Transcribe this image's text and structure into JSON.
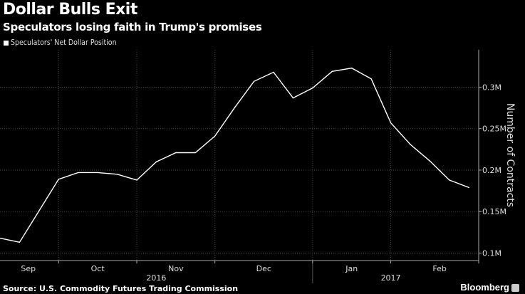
{
  "title": "Dollar Bulls Exit",
  "subtitle": "Speculators losing faith in Trump's promises",
  "source": "Source: U.S. Commodity Futures Trading Commission",
  "brand": "Bloomberg",
  "chart_data": {
    "type": "line",
    "title": "Dollar Bulls Exit",
    "ylabel": "Number of Contracts",
    "xlabel": "",
    "legend": "top-left",
    "grid": true,
    "series": [
      {
        "name": "Speculators' Net Dollar Position",
        "color": "#ffffff",
        "x": [
          0,
          1,
          2,
          3,
          4,
          5,
          6,
          7,
          8,
          9,
          10,
          11,
          12,
          13,
          14,
          15,
          16,
          17,
          18,
          19,
          20,
          21,
          22,
          23,
          24
        ],
        "values": [
          0.118,
          0.113,
          0.151,
          0.189,
          0.197,
          0.197,
          0.195,
          0.188,
          0.21,
          0.221,
          0.221,
          0.241,
          0.275,
          0.307,
          0.318,
          0.287,
          0.299,
          0.319,
          0.323,
          0.31,
          0.257,
          0.231,
          0.211,
          0.188,
          0.179
        ]
      }
    ],
    "ylim": [
      0.091,
      0.345
    ],
    "xlim": [
      0,
      24.5
    ],
    "yticks": [
      {
        "value": 0.1,
        "label": "0.1M"
      },
      {
        "value": 0.15,
        "label": "0.15M"
      },
      {
        "value": 0.2,
        "label": "0.2M"
      },
      {
        "value": 0.25,
        "label": "0.25M"
      },
      {
        "value": 0.3,
        "label": "0.3M"
      }
    ],
    "month_labels": [
      {
        "pos": 1.45,
        "label": "Sep"
      },
      {
        "pos": 5,
        "label": "Oct"
      },
      {
        "pos": 9,
        "label": "Nov"
      },
      {
        "pos": 13.5,
        "label": "Dec"
      },
      {
        "pos": 18,
        "label": "Jan"
      },
      {
        "pos": 22.5,
        "label": "Feb"
      }
    ],
    "month_gridlines": [
      3,
      7,
      11,
      16,
      20,
      24.5
    ],
    "year_labels": [
      {
        "pos": 8,
        "label": "2016"
      },
      {
        "pos": 20,
        "label": "2017"
      }
    ],
    "year_divider": 16
  }
}
